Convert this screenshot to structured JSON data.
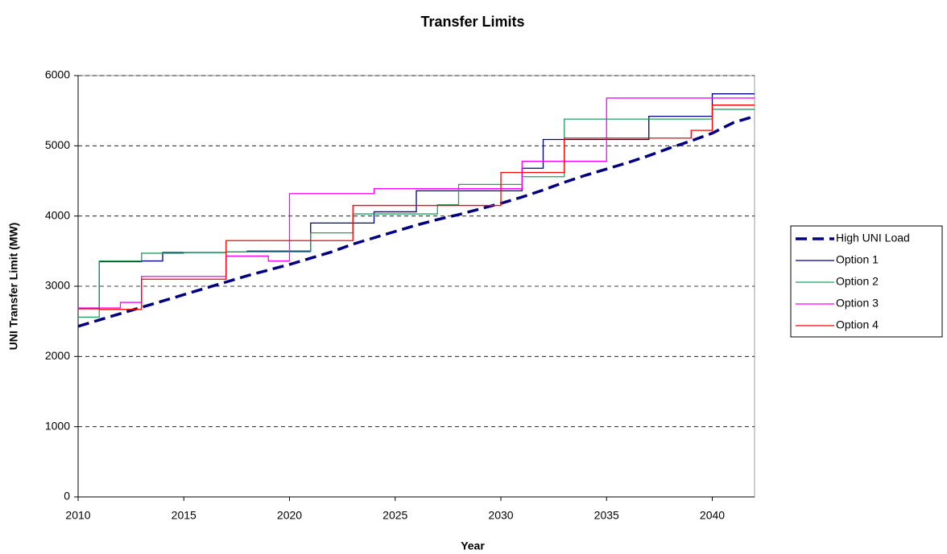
{
  "chart_data": {
    "type": "line",
    "title": "Transfer Limits",
    "x_label": "Year",
    "y_label": "UNI Transfer Limit (MW)",
    "x": [
      2010,
      2011,
      2012,
      2013,
      2014,
      2015,
      2016,
      2017,
      2018,
      2019,
      2020,
      2021,
      2022,
      2023,
      2024,
      2025,
      2026,
      2027,
      2028,
      2029,
      2030,
      2031,
      2032,
      2033,
      2034,
      2035,
      2036,
      2037,
      2038,
      2039,
      2040,
      2041,
      2042
    ],
    "series": [
      {
        "name": "High UNI Load",
        "color": "#000080",
        "line_style": "dashed",
        "drawstyle": "default",
        "values": [
          2430,
          2520,
          2610,
          2700,
          2790,
          2880,
          2970,
          3060,
          3150,
          3230,
          3310,
          3400,
          3490,
          3600,
          3690,
          3780,
          3870,
          3950,
          4020,
          4100,
          4180,
          4270,
          4370,
          4480,
          4580,
          4670,
          4760,
          4860,
          4970,
          5070,
          5180,
          5330,
          5420
        ]
      },
      {
        "name": "Option 1",
        "color": "#000080",
        "line_style": "solid",
        "drawstyle": "steps-post",
        "values": [
          2680,
          3350,
          3350,
          3360,
          3480,
          3480,
          3480,
          3490,
          3500,
          3500,
          3500,
          3900,
          3900,
          3900,
          4060,
          4060,
          4360,
          4360,
          4360,
          4360,
          4360,
          4680,
          5090,
          5090,
          5090,
          5090,
          5090,
          5420,
          5420,
          5420,
          5740,
          5740,
          5740
        ]
      },
      {
        "name": "Option 2",
        "color": "#20a060",
        "line_style": "solid",
        "drawstyle": "steps-post",
        "values": [
          2560,
          3360,
          3360,
          3470,
          3470,
          3480,
          3480,
          3490,
          3490,
          3490,
          3490,
          3760,
          3760,
          4030,
          4030,
          4030,
          4030,
          4160,
          4450,
          4450,
          4450,
          4560,
          4560,
          5380,
          5380,
          5380,
          5380,
          5380,
          5380,
          5380,
          5520,
          5520,
          5520
        ]
      },
      {
        "name": "Option 3",
        "color": "#ff00ff",
        "line_style": "solid",
        "drawstyle": "steps-post",
        "values": [
          2690,
          2690,
          2770,
          3140,
          3140,
          3140,
          3140,
          3430,
          3430,
          3360,
          4320,
          4320,
          4320,
          4320,
          4390,
          4390,
          4390,
          4390,
          4390,
          4390,
          4390,
          4780,
          4780,
          4780,
          4780,
          5680,
          5680,
          5680,
          5680,
          5680,
          5680,
          5680,
          5680
        ]
      },
      {
        "name": "Option 4",
        "color": "#ff0000",
        "line_style": "solid",
        "drawstyle": "steps-post",
        "values": [
          2680,
          2670,
          2670,
          3100,
          3100,
          3100,
          3100,
          3650,
          3650,
          3650,
          3650,
          3650,
          3650,
          4150,
          4150,
          4150,
          4150,
          4150,
          4150,
          4150,
          4620,
          4620,
          4620,
          5110,
          5110,
          5110,
          5110,
          5110,
          5110,
          5220,
          5580,
          5580,
          5580
        ]
      }
    ],
    "xlim": [
      2010,
      2042
    ],
    "xticks": [
      2010,
      2015,
      2020,
      2025,
      2030,
      2035,
      2040
    ],
    "ylim": [
      0,
      6000
    ],
    "yticks": [
      0,
      1000,
      2000,
      3000,
      4000,
      5000,
      6000
    ],
    "grid": true,
    "legend": "right"
  }
}
